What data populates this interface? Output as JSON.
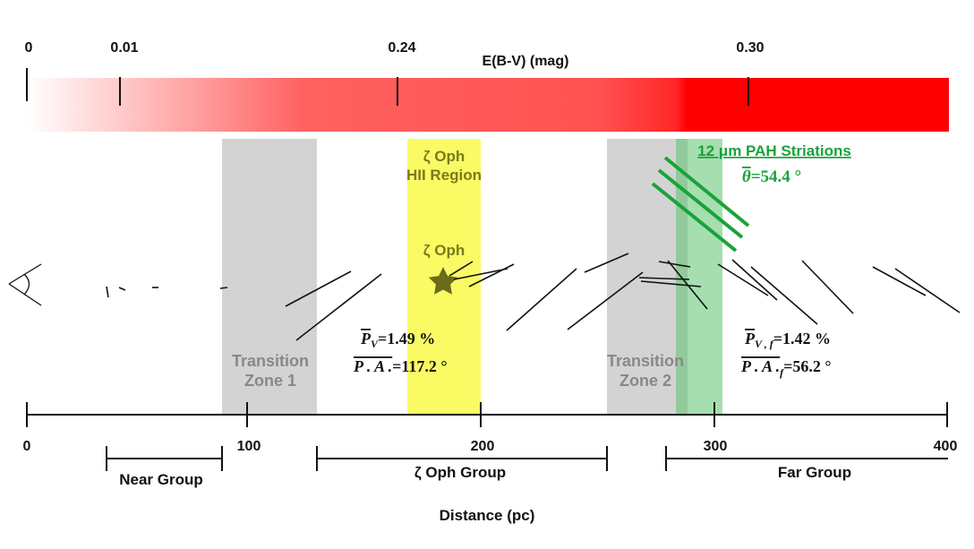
{
  "ebv_bar": {
    "title": "E(B-V) (mag)",
    "ticks": [
      "0",
      "0.01",
      "0.24",
      "0.30"
    ],
    "color": "#ff0000"
  },
  "regions": {
    "transition1": {
      "line1": "Transition",
      "line2": "Zone 1",
      "color": "#d3d3d3"
    },
    "hii": {
      "line1": "ζ Oph",
      "line2": "HII Region",
      "color": "#fafa64"
    },
    "transition2": {
      "line1": "Transition",
      "line2": "Zone 2",
      "color": "#d3d3d3"
    },
    "pah_band": {
      "color": "#7ccf8a"
    }
  },
  "star": {
    "label": "ζ Oph",
    "color": "#6b6b1a"
  },
  "pah": {
    "title": "12 μm PAH Striations",
    "theta_symbol": "θ",
    "theta_value": "=54.4 °",
    "color": "#19a33a"
  },
  "polarization": {
    "near": {
      "pv_sym": "P",
      "pv_sub": "V",
      "pv_val": "=1.49 %",
      "pa_sym": "P . A .",
      "pa_val": "=117.2 °"
    },
    "far": {
      "pv_sym": "P",
      "pv_sub": "V , f",
      "pv_val": "=1.42 %",
      "pa_sym": "P . A .",
      "pa_sub": "f",
      "pa_val": "=56.2 °"
    }
  },
  "axis": {
    "label": "Distance (pc)",
    "ticks": [
      "0",
      "100",
      "200",
      "300",
      "400"
    ]
  },
  "groups": {
    "near": "Near Group",
    "zeta": "ζ Oph Group",
    "far": "Far Group"
  }
}
